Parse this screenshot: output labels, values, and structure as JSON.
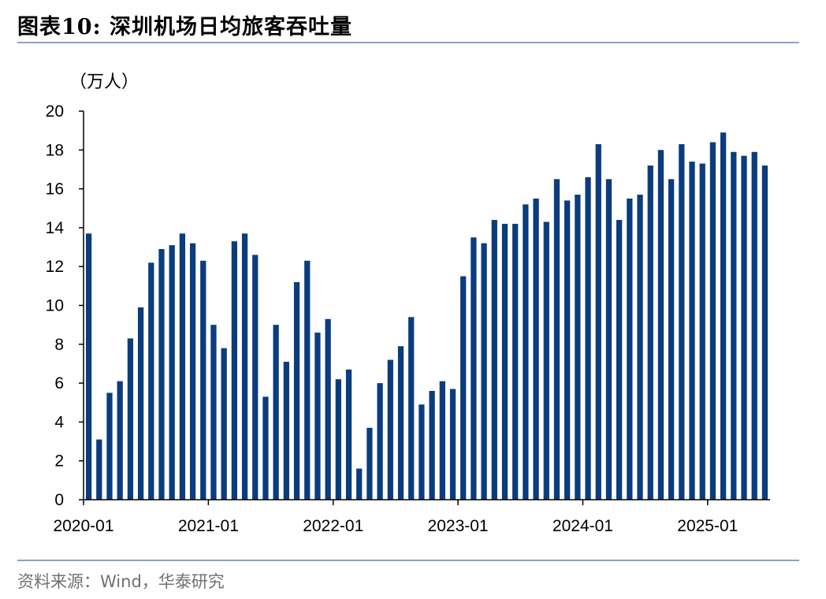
{
  "header": {
    "title": "图表10:  深圳机场日均旅客吞吐量"
  },
  "footer": {
    "source": "资料来源：Wind，华泰研究"
  },
  "colors": {
    "bar": "#0b3c7d",
    "rule": "#8ea3c4",
    "axis": "#000000"
  },
  "chart_data": {
    "type": "bar",
    "title": "",
    "ylabel": "（万人）",
    "xlabel": "",
    "ylim": [
      0,
      20
    ],
    "yticks": [
      0,
      2,
      4,
      6,
      8,
      10,
      12,
      14,
      16,
      18,
      20
    ],
    "xtick_labels": [
      "2020-01",
      "2021-01",
      "2022-01",
      "2023-01",
      "2024-01",
      "2025-01"
    ],
    "grid": false,
    "legend": "none",
    "categories": [
      "2020-01",
      "2020-02",
      "2020-03",
      "2020-04",
      "2020-05",
      "2020-06",
      "2020-07",
      "2020-08",
      "2020-09",
      "2020-10",
      "2020-11",
      "2020-12",
      "2021-01",
      "2021-02",
      "2021-03",
      "2021-04",
      "2021-05",
      "2021-06",
      "2021-07",
      "2021-08",
      "2021-09",
      "2021-10",
      "2021-11",
      "2021-12",
      "2022-01",
      "2022-02",
      "2022-03",
      "2022-04",
      "2022-05",
      "2022-06",
      "2022-07",
      "2022-08",
      "2022-09",
      "2022-10",
      "2022-11",
      "2022-12",
      "2023-01",
      "2023-02",
      "2023-03",
      "2023-04",
      "2023-05",
      "2023-06",
      "2023-07",
      "2023-08",
      "2023-09",
      "2023-10",
      "2023-11",
      "2023-12",
      "2024-01",
      "2024-02",
      "2024-03",
      "2024-04",
      "2024-05",
      "2024-06",
      "2024-07",
      "2024-08",
      "2024-09",
      "2024-10",
      "2024-11",
      "2024-12",
      "2025-01",
      "2025-02",
      "2025-03",
      "2025-04",
      "2025-05",
      "2025-06"
    ],
    "values": [
      13.7,
      3.1,
      5.5,
      6.1,
      8.3,
      9.9,
      12.2,
      12.9,
      13.1,
      13.7,
      13.2,
      12.3,
      9.0,
      7.8,
      13.3,
      13.7,
      12.6,
      5.3,
      9.0,
      7.1,
      11.2,
      12.3,
      8.6,
      9.3,
      6.2,
      6.7,
      1.6,
      3.7,
      6.0,
      7.2,
      7.9,
      9.4,
      4.9,
      5.6,
      6.1,
      5.7,
      11.5,
      13.5,
      13.2,
      14.4,
      14.2,
      14.2,
      15.2,
      15.5,
      14.3,
      16.5,
      15.4,
      15.7,
      16.6,
      18.3,
      16.5,
      14.4,
      15.5,
      15.7,
      17.2,
      18.0,
      16.5,
      18.3,
      17.4,
      17.3,
      18.4,
      18.9,
      17.9,
      17.7,
      17.9,
      17.2
    ]
  }
}
